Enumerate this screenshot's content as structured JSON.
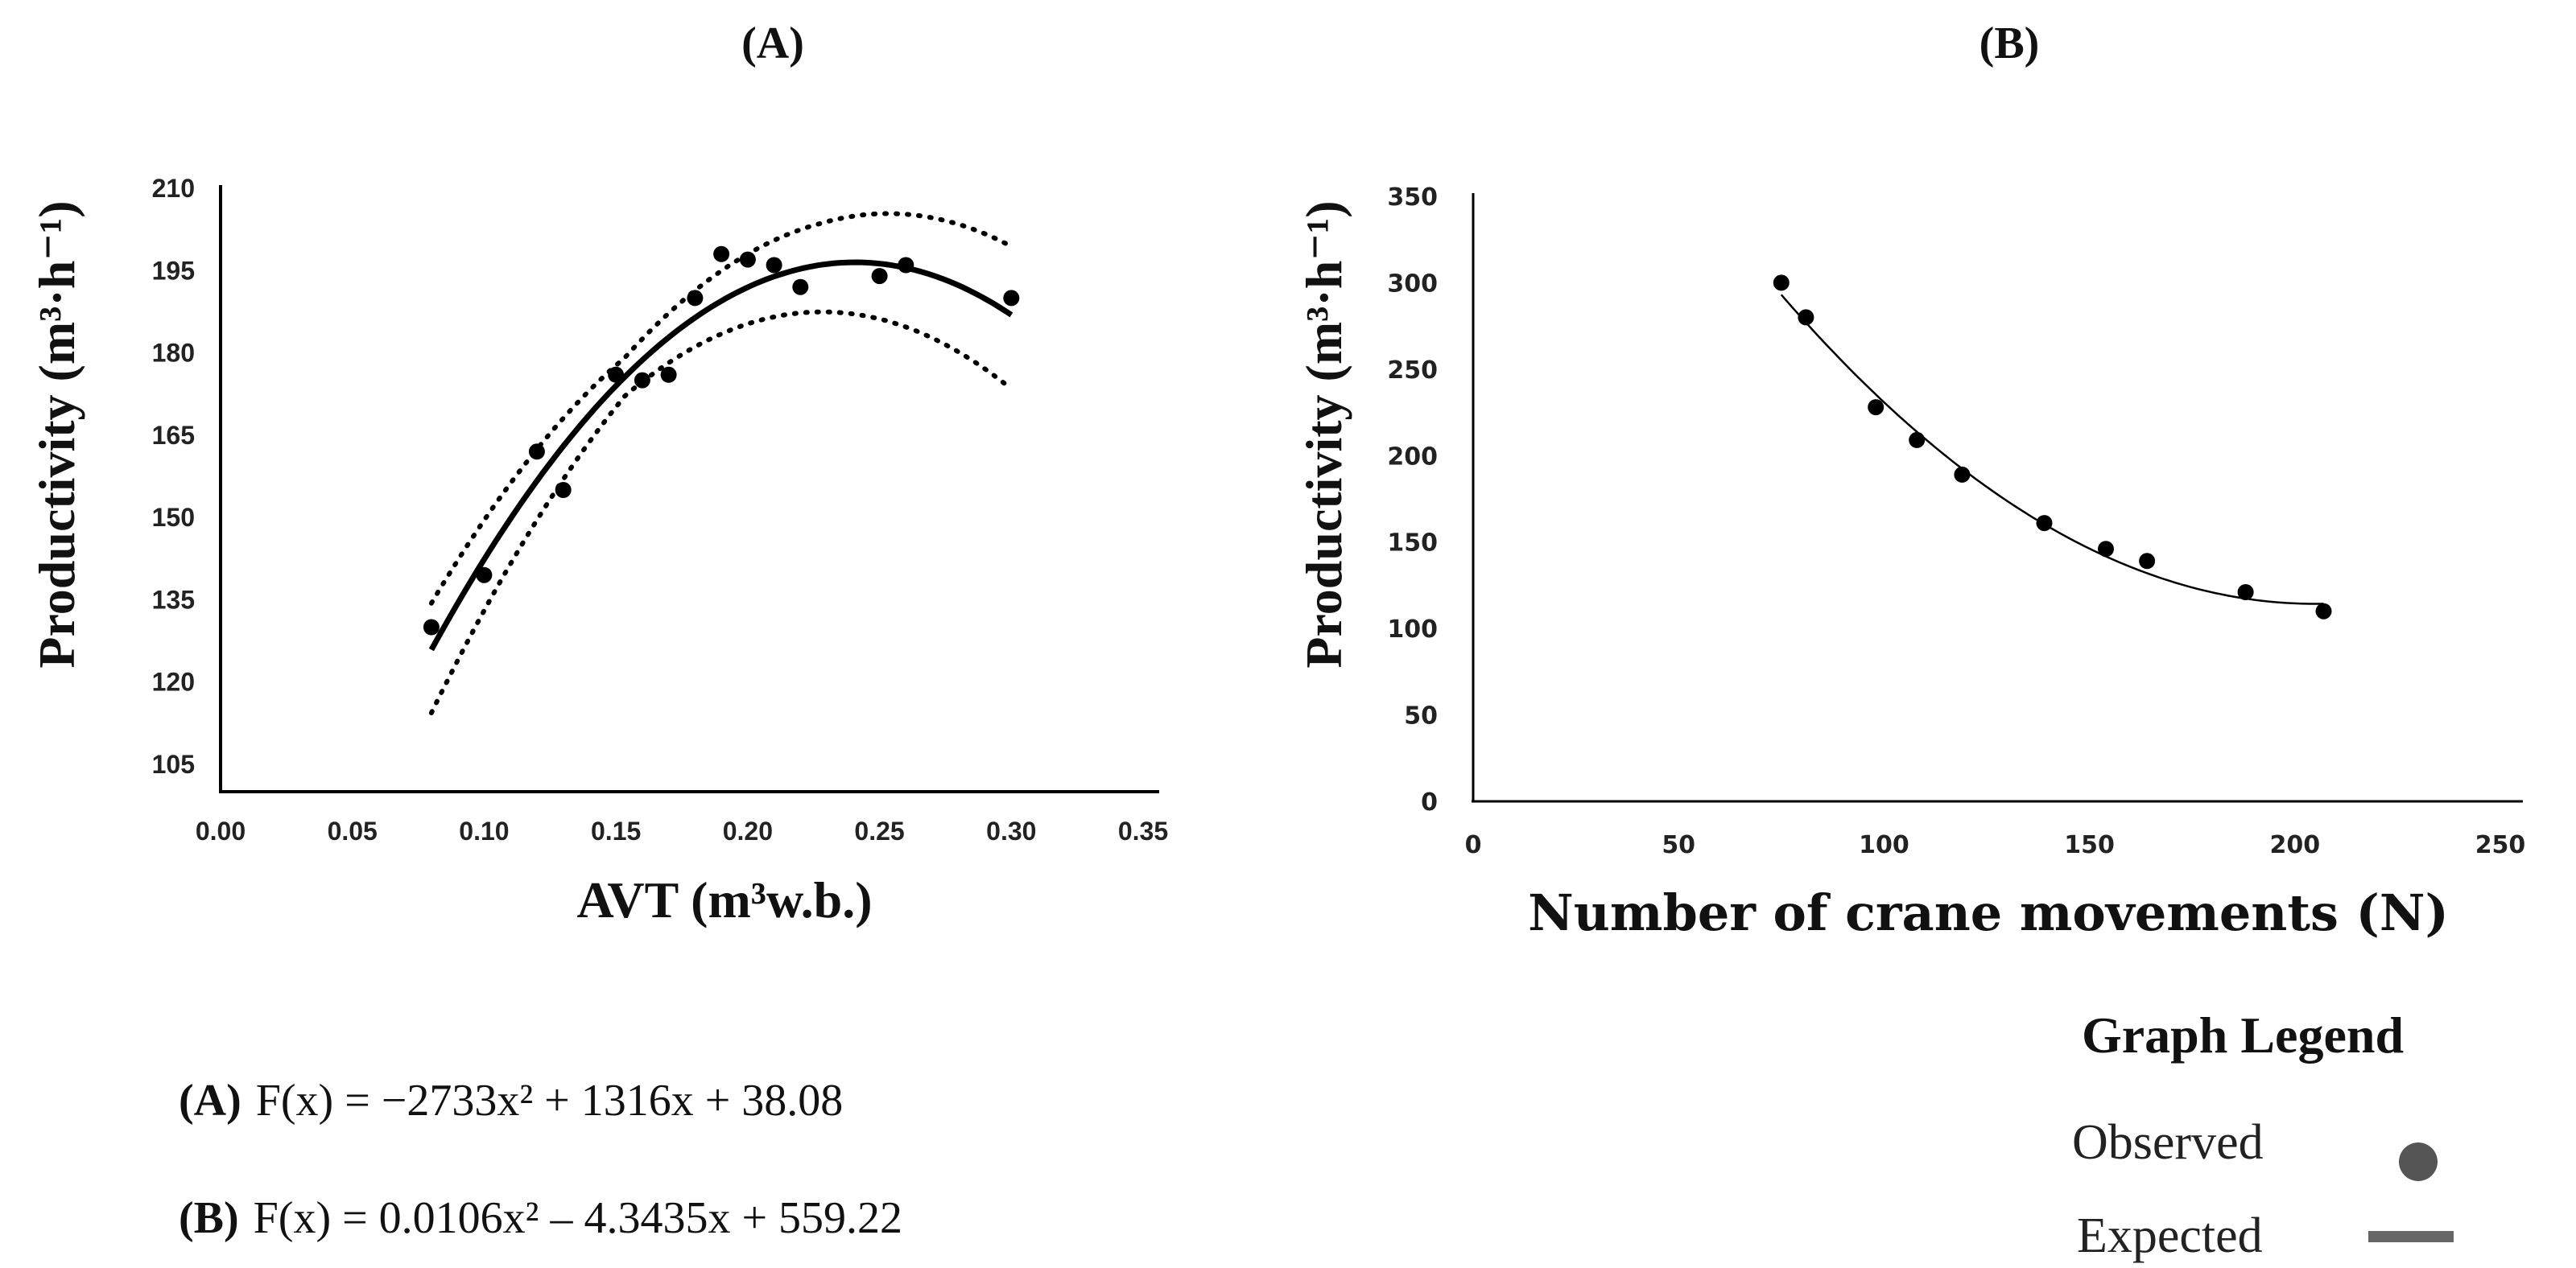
{
  "chart_data": [
    {
      "panel": "(A)",
      "type": "scatter",
      "title": "(A)",
      "xlabel": "AVT (m³w.b.)",
      "ylabel": "Productivity (m³·h⁻¹)",
      "xlim": [
        0.0,
        0.35
      ],
      "ylim": [
        100,
        210
      ],
      "xticks": [
        "0.00",
        "0.05",
        "0.10",
        "0.15",
        "0.20",
        "0.25",
        "0.30",
        "0.35"
      ],
      "yticks": [
        "105",
        "120",
        "135",
        "150",
        "165",
        "180",
        "195",
        "210"
      ],
      "observed": {
        "x": [
          0.08,
          0.1,
          0.12,
          0.13,
          0.15,
          0.16,
          0.17,
          0.18,
          0.19,
          0.2,
          0.21,
          0.22,
          0.25,
          0.26,
          0.3
        ],
        "y": [
          130,
          139.5,
          162,
          155,
          176,
          175,
          176,
          190,
          198,
          197,
          196,
          192,
          194,
          196,
          190
        ]
      },
      "fit": {
        "a": -2733,
        "b": 1316,
        "c": 38.08,
        "x_range": [
          0.08,
          0.3
        ]
      },
      "confidence_band": {
        "lower_offset": [
          8,
          0,
          5,
          10
        ],
        "upper_offset": [
          5,
          0,
          4,
          9
        ]
      },
      "grid": false
    },
    {
      "panel": "(B)",
      "type": "scatter",
      "title": "(B)",
      "xlabel": "Number of crane movements  (N)",
      "ylabel": "Productivity (m³·h⁻¹)",
      "xlim": [
        0,
        250
      ],
      "ylim": [
        0,
        350
      ],
      "xticks": [
        "0",
        "50",
        "100",
        "150",
        "200",
        "250"
      ],
      "yticks": [
        "0",
        "50",
        "100",
        "150",
        "200",
        "250",
        "300",
        "350"
      ],
      "observed": {
        "x": [
          75,
          81,
          98,
          108,
          119,
          139,
          154,
          164,
          188,
          207
        ],
        "y": [
          300,
          280,
          228,
          209,
          189,
          161,
          146,
          139,
          121,
          110
        ]
      },
      "fit": {
        "a": 0.0106,
        "b": -4.3435,
        "c": 559.22,
        "x_range": [
          75,
          207
        ]
      },
      "grid": false
    }
  ],
  "equations": [
    {
      "label": "(A)",
      "text": "F(x) = −2733x² + 1316x + 38.08"
    },
    {
      "label": "(B)",
      "text": "F(x) = 0.0106x² – 4.3435x + 559.22"
    }
  ],
  "legend": {
    "title": "Graph Legend",
    "items": [
      {
        "label": "Observed",
        "marker": "dot"
      },
      {
        "label": "Expected",
        "marker": "line"
      }
    ]
  },
  "colors": {
    "marker": "#000000",
    "line": "#000000",
    "legend_marker": "#555555",
    "axis": "#000000"
  }
}
